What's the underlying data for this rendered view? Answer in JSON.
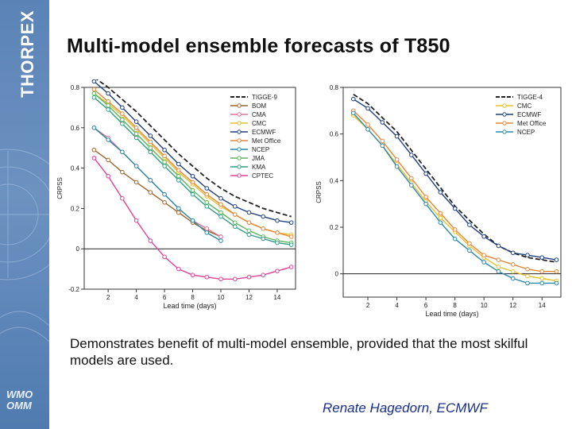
{
  "sidebar": {
    "brand": "THORPEX",
    "logo_line1": "WMO",
    "logo_line2": "OMM"
  },
  "slide": {
    "title": "Multi-model ensemble forecasts of T850",
    "caption": "Demonstrates benefit of multi-model ensemble, provided that the most skilful models are used.",
    "credit": "Renate Hagedorn, ECMWF"
  },
  "chart_data": [
    {
      "type": "line",
      "xlabel": "Lead time (days)",
      "ylabel": "CRPSS",
      "xlim": [
        0.3,
        15.3
      ],
      "ylim": [
        -0.2,
        0.8
      ],
      "xticks": [
        2,
        4,
        6,
        8,
        10,
        12,
        14
      ],
      "yticks": [
        -0.2,
        0,
        0.2,
        0.4,
        0.6,
        0.8
      ],
      "zero_line": true,
      "legend_position": "top-right",
      "series": [
        {
          "name": "TIGGE-9",
          "color": "#222222",
          "dashed": true,
          "markers": false,
          "x": [
            1,
            2,
            3,
            4,
            5,
            6,
            7,
            8,
            9,
            10,
            11,
            12,
            13,
            14,
            15
          ],
          "y": [
            0.85,
            0.8,
            0.74,
            0.68,
            0.61,
            0.54,
            0.47,
            0.41,
            0.35,
            0.3,
            0.26,
            0.23,
            0.2,
            0.18,
            0.16
          ]
        },
        {
          "name": "BOM",
          "color": "#a0652a",
          "dashed": false,
          "markers": true,
          "x": [
            1,
            2,
            3,
            4,
            5,
            6,
            7,
            8,
            9,
            10
          ],
          "y": [
            0.49,
            0.44,
            0.38,
            0.33,
            0.28,
            0.23,
            0.18,
            0.13,
            0.09,
            0.06
          ]
        },
        {
          "name": "CMA",
          "color": "#e0709a",
          "dashed": false,
          "markers": true,
          "x": [
            1,
            2,
            3,
            4,
            5,
            6,
            7,
            8,
            9,
            10
          ],
          "y": [
            0.6,
            0.55,
            0.48,
            0.41,
            0.34,
            0.27,
            0.2,
            0.14,
            0.1,
            0.06
          ]
        },
        {
          "name": "CMC",
          "color": "#e6c030",
          "dashed": false,
          "markers": true,
          "x": [
            1,
            2,
            3,
            4,
            5,
            6,
            7,
            8,
            9,
            10,
            11,
            12,
            13,
            14,
            15
          ],
          "y": [
            0.77,
            0.72,
            0.66,
            0.59,
            0.52,
            0.45,
            0.38,
            0.32,
            0.26,
            0.21,
            0.17,
            0.13,
            0.1,
            0.08,
            0.07
          ]
        },
        {
          "name": "ECMWF",
          "color": "#1e3f80",
          "dashed": false,
          "markers": true,
          "x": [
            1,
            2,
            3,
            4,
            5,
            6,
            7,
            8,
            9,
            10,
            11,
            12,
            13,
            14,
            15
          ],
          "y": [
            0.83,
            0.77,
            0.7,
            0.63,
            0.56,
            0.49,
            0.42,
            0.36,
            0.3,
            0.25,
            0.21,
            0.18,
            0.16,
            0.14,
            0.13
          ]
        },
        {
          "name": "Met Office",
          "color": "#e8873a",
          "dashed": false,
          "markers": true,
          "x": [
            1,
            2,
            3,
            4,
            5,
            6,
            7,
            8,
            9,
            10,
            11,
            12,
            13,
            14,
            15
          ],
          "y": [
            0.79,
            0.73,
            0.67,
            0.6,
            0.53,
            0.46,
            0.39,
            0.33,
            0.27,
            0.22,
            0.17,
            0.13,
            0.1,
            0.08,
            0.06
          ]
        },
        {
          "name": "NCEP",
          "color": "#2a8aa8",
          "dashed": false,
          "markers": true,
          "x": [
            1,
            2,
            3,
            4,
            5,
            6,
            7,
            8,
            9,
            10
          ],
          "y": [
            0.6,
            0.54,
            0.48,
            0.41,
            0.34,
            0.27,
            0.2,
            0.14,
            0.08,
            0.04
          ]
        },
        {
          "name": "JMA",
          "color": "#5ab55a",
          "dashed": false,
          "markers": true,
          "x": [
            1,
            2,
            3,
            4,
            5,
            6,
            7,
            8,
            9,
            10,
            11,
            12,
            13,
            14,
            15
          ],
          "y": [
            0.77,
            0.71,
            0.64,
            0.57,
            0.5,
            0.43,
            0.36,
            0.29,
            0.23,
            0.18,
            0.13,
            0.09,
            0.06,
            0.04,
            0.03
          ]
        },
        {
          "name": "KMA",
          "color": "#2f9e8a",
          "dashed": false,
          "markers": true,
          "x": [
            1,
            2,
            3,
            4,
            5,
            6,
            7,
            8,
            9,
            10,
            11,
            12,
            13,
            14,
            15
          ],
          "y": [
            0.75,
            0.69,
            0.62,
            0.55,
            0.48,
            0.41,
            0.34,
            0.27,
            0.21,
            0.16,
            0.11,
            0.07,
            0.05,
            0.03,
            0.02
          ]
        },
        {
          "name": "CPTEC",
          "color": "#e0409a",
          "dashed": false,
          "markers": true,
          "x": [
            1,
            2,
            3,
            4,
            5,
            6,
            7,
            8,
            9,
            10,
            11,
            12,
            13,
            14,
            15
          ],
          "y": [
            0.45,
            0.36,
            0.25,
            0.14,
            0.04,
            -0.04,
            -0.1,
            -0.13,
            -0.14,
            -0.15,
            -0.15,
            -0.14,
            -0.13,
            -0.11,
            -0.09
          ]
        }
      ]
    },
    {
      "type": "line",
      "xlabel": "Lead time (days)",
      "ylabel": "CRPSS",
      "xlim": [
        0.3,
        15.3
      ],
      "ylim": [
        -0.1,
        0.8
      ],
      "xticks": [
        2,
        4,
        6,
        8,
        10,
        12,
        14
      ],
      "yticks": [
        0,
        0.2,
        0.4,
        0.6,
        0.8
      ],
      "zero_line": true,
      "legend_position": "top-right",
      "series": [
        {
          "name": "TIGGE-4",
          "color": "#222222",
          "dashed": true,
          "markers": false,
          "x": [
            1,
            2,
            3,
            4,
            5,
            6,
            7,
            8,
            9,
            10,
            11,
            12,
            13,
            14,
            15
          ],
          "y": [
            0.77,
            0.73,
            0.67,
            0.61,
            0.53,
            0.45,
            0.37,
            0.29,
            0.23,
            0.17,
            0.12,
            0.09,
            0.07,
            0.06,
            0.05
          ]
        },
        {
          "name": "CMC",
          "color": "#e6c030",
          "dashed": false,
          "markers": true,
          "x": [
            1,
            2,
            3,
            4,
            5,
            6,
            7,
            8,
            9,
            10,
            11,
            12,
            13,
            14,
            15
          ],
          "y": [
            0.68,
            0.62,
            0.55,
            0.47,
            0.39,
            0.31,
            0.24,
            0.18,
            0.12,
            0.07,
            0.03,
            0.01,
            -0.01,
            -0.02,
            -0.03
          ]
        },
        {
          "name": "ECMWF",
          "color": "#1e3f80",
          "dashed": false,
          "markers": true,
          "x": [
            1,
            2,
            3,
            4,
            5,
            6,
            7,
            8,
            9,
            10,
            11,
            12,
            13,
            14,
            15
          ],
          "y": [
            0.75,
            0.71,
            0.65,
            0.59,
            0.51,
            0.43,
            0.35,
            0.28,
            0.21,
            0.16,
            0.12,
            0.09,
            0.08,
            0.07,
            0.06
          ]
        },
        {
          "name": "Met Office",
          "color": "#e8873a",
          "dashed": false,
          "markers": true,
          "x": [
            1,
            2,
            3,
            4,
            5,
            6,
            7,
            8,
            9,
            10,
            11,
            12,
            13,
            14,
            15
          ],
          "y": [
            0.7,
            0.64,
            0.57,
            0.49,
            0.41,
            0.33,
            0.26,
            0.19,
            0.13,
            0.08,
            0.06,
            0.04,
            0.02,
            0.01,
            0.01
          ]
        },
        {
          "name": "NCEP",
          "color": "#2a8aa8",
          "dashed": false,
          "markers": true,
          "x": [
            1,
            2,
            3,
            4,
            5,
            6,
            7,
            8,
            9,
            10,
            11,
            12,
            13,
            14,
            15
          ],
          "y": [
            0.69,
            0.62,
            0.55,
            0.46,
            0.38,
            0.3,
            0.22,
            0.15,
            0.1,
            0.05,
            0.01,
            -0.02,
            -0.04,
            -0.04,
            -0.04
          ]
        }
      ]
    }
  ]
}
